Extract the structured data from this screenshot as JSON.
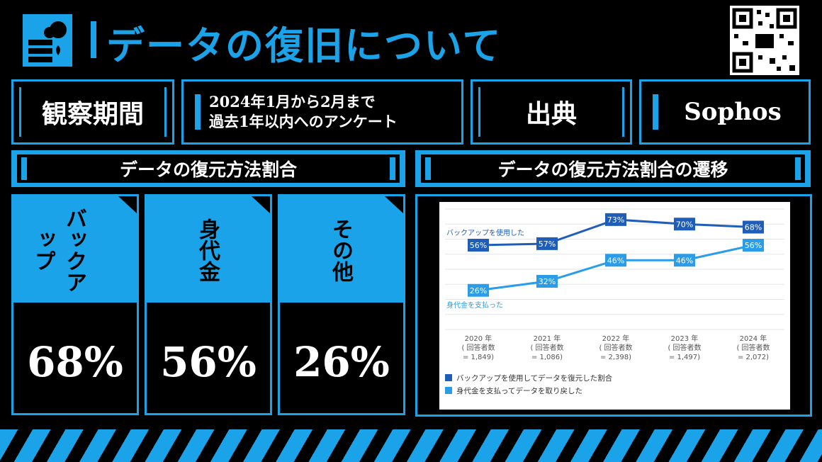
{
  "header": {
    "title": "データの復旧について",
    "icon": "server-cloud-icon",
    "qr": "qr-code-icon"
  },
  "info": {
    "period_label": "観察期間",
    "period_text": "2024年1月から2月まで\n過去1年以内へのアンケート",
    "source_label": "出典",
    "source_value": "Sophos"
  },
  "sections": {
    "left_title": "データの復元方法割合",
    "right_title": "データの復元方法割合の遷移"
  },
  "cards": [
    {
      "label": "バックアップ",
      "value": "68%"
    },
    {
      "label": "身代金",
      "value": "56%"
    },
    {
      "label": "その他",
      "value": "26%"
    }
  ],
  "colors": {
    "accent": "#1aa3e8",
    "series_backup": "#1f5eb8",
    "series_ransom": "#2b9de8"
  },
  "chart_data": {
    "type": "line",
    "categories": [
      "2020 年\n( 回答者数\n= 1,849)",
      "2021 年\n( 回答者数\n= 1,086)",
      "2022 年\n( 回答者数\n= 2,398)",
      "2023 年\n( 回答者数\n= 1,497)",
      "2024 年\n( 回答者数\n= 2,072)"
    ],
    "series": [
      {
        "name": "バックアップを使用してデータを復元した割合",
        "inline_label": "バックアップを使用した",
        "values": [
          56,
          57,
          73,
          70,
          68
        ]
      },
      {
        "name": "身代金を支払ってデータを取り戻した",
        "inline_label": "身代金を支払った",
        "values": [
          26,
          32,
          46,
          46,
          56
        ]
      }
    ],
    "ylim": [
      0,
      80
    ],
    "grid": true,
    "legend": "bottom-left"
  }
}
